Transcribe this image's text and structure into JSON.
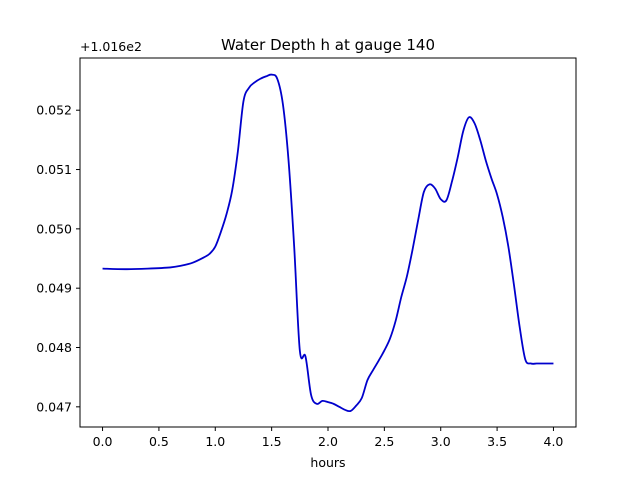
{
  "chart_data": {
    "type": "line",
    "title": "Water Depth h at gauge 140",
    "xlabel": "hours",
    "ylabel": "",
    "offset_label": "+1.016e2",
    "xlim": [
      -0.2,
      4.2
    ],
    "ylim": [
      0.04666,
      0.05288
    ],
    "xticks": [
      0.0,
      0.5,
      1.0,
      1.5,
      2.0,
      2.5,
      3.0,
      3.5,
      4.0
    ],
    "xtick_labels": [
      "0.0",
      "0.5",
      "1.0",
      "1.5",
      "2.0",
      "2.5",
      "3.0",
      "3.5",
      "4.0"
    ],
    "yticks": [
      0.047,
      0.048,
      0.049,
      0.05,
      0.051,
      0.052
    ],
    "ytick_labels": [
      "0.047",
      "0.048",
      "0.049",
      "0.050",
      "0.051",
      "0.052"
    ],
    "grid": false,
    "series": [
      {
        "name": "",
        "color": "#0000cc",
        "x": [
          0.0,
          0.2,
          0.4,
          0.6,
          0.7,
          0.8,
          0.9,
          0.95,
          1.0,
          1.05,
          1.1,
          1.15,
          1.2,
          1.25,
          1.3,
          1.35,
          1.4,
          1.45,
          1.5,
          1.55,
          1.6,
          1.65,
          1.7,
          1.75,
          1.8,
          1.85,
          1.9,
          1.95,
          2.0,
          2.05,
          2.1,
          2.15,
          2.2,
          2.25,
          2.3,
          2.35,
          2.4,
          2.45,
          2.5,
          2.55,
          2.6,
          2.65,
          2.7,
          2.75,
          2.8,
          2.85,
          2.9,
          2.95,
          3.0,
          3.05,
          3.1,
          3.15,
          3.2,
          3.25,
          3.3,
          3.35,
          3.4,
          3.45,
          3.5,
          3.55,
          3.6,
          3.65,
          3.7,
          3.75,
          3.8,
          3.85,
          3.9,
          3.95,
          4.0
        ],
        "y": [
          0.04933,
          0.04932,
          0.04933,
          0.04935,
          0.04938,
          0.04943,
          0.04952,
          0.04958,
          0.0497,
          0.04995,
          0.05025,
          0.05065,
          0.0513,
          0.05215,
          0.05238,
          0.05247,
          0.05253,
          0.05257,
          0.0526,
          0.05253,
          0.0521,
          0.05115,
          0.0497,
          0.04795,
          0.04785,
          0.0472,
          0.04705,
          0.0471,
          0.04708,
          0.04705,
          0.047,
          0.04695,
          0.04693,
          0.04702,
          0.04715,
          0.04745,
          0.04762,
          0.04778,
          0.04795,
          0.04815,
          0.04845,
          0.04885,
          0.0492,
          0.04965,
          0.05015,
          0.05062,
          0.05075,
          0.05068,
          0.0505,
          0.05048,
          0.0508,
          0.0512,
          0.05165,
          0.05188,
          0.05178,
          0.0515,
          0.05115,
          0.05085,
          0.05058,
          0.0502,
          0.0497,
          0.04905,
          0.04835,
          0.0478,
          0.04773,
          0.04773,
          0.04773,
          0.04773,
          0.04773
        ]
      }
    ]
  }
}
